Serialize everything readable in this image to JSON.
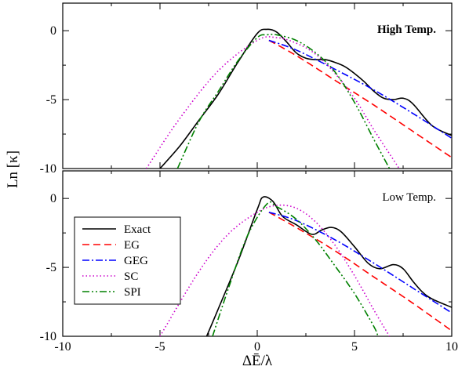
{
  "figure": {
    "ylabel": "Ln [κ]",
    "xlabel": "ΔĒ/λ"
  },
  "legend": {
    "placement": "center-left of bottom panel",
    "entries": [
      {
        "label": "Exact",
        "color": "#000000",
        "dash": "solid"
      },
      {
        "label": "EG",
        "color": "#ff0000",
        "dash": "dashed"
      },
      {
        "label": "GEG",
        "color": "#0000ff",
        "dash": "dash-dot"
      },
      {
        "label": "SC",
        "color": "#cc00cc",
        "dash": "dotted"
      },
      {
        "label": "SPI",
        "color": "#008000",
        "dash": "dash-dot-dot"
      }
    ]
  },
  "chart_data": [
    {
      "type": "line",
      "panel": "top",
      "title": "High Temp.",
      "xlim": [
        -10,
        10
      ],
      "ylim": [
        -10,
        2
      ],
      "xticks": [],
      "yticks": [
        0,
        -5,
        -10
      ],
      "ytick_labels": [
        "0",
        "-5",
        "-10"
      ],
      "grid": false,
      "series": [
        {
          "name": "Exact",
          "x": [
            -5,
            -4,
            -3,
            -2,
            -1,
            0,
            0.5,
            1,
            1.5,
            2,
            2.5,
            3,
            3.5,
            4,
            4.5,
            5,
            5.5,
            6,
            6.5,
            7,
            7.5,
            8,
            9,
            10
          ],
          "y": [
            -10,
            -8.4,
            -6.5,
            -4.6,
            -2.3,
            -0.2,
            0.1,
            -0.1,
            -0.8,
            -1.6,
            -2,
            -2.1,
            -2.1,
            -2.3,
            -2.6,
            -3.1,
            -3.7,
            -4.4,
            -4.9,
            -5,
            -4.9,
            -5.3,
            -6.9,
            -7.6
          ]
        },
        {
          "name": "EG",
          "x": [
            0.6,
            2,
            4,
            6,
            8,
            10
          ],
          "y": [
            -0.7,
            -1.8,
            -3.6,
            -5.4,
            -7.3,
            -9.2
          ]
        },
        {
          "name": "GEG",
          "x": [
            0.6,
            2,
            4,
            6,
            8,
            10
          ],
          "y": [
            -0.7,
            -1.4,
            -2.8,
            -4.3,
            -6.0,
            -7.8
          ]
        },
        {
          "name": "SC",
          "x": [
            -5.7,
            -4,
            -2,
            0,
            1,
            2,
            3,
            4,
            5,
            6,
            7.3
          ],
          "y": [
            -10,
            -6.4,
            -2.9,
            -0.7,
            -0.5,
            -0.9,
            -1.7,
            -3.1,
            -4.9,
            -7.2,
            -10
          ]
        },
        {
          "name": "SPI",
          "x": [
            -4.1,
            -3,
            -2,
            -1,
            0,
            0.5,
            1,
            2,
            3,
            4,
            5,
            6,
            6.8
          ],
          "y": [
            -10,
            -6.6,
            -4.4,
            -2.2,
            -0.5,
            -0.3,
            -0.3,
            -0.7,
            -1.6,
            -3.0,
            -5.2,
            -7.9,
            -10
          ]
        }
      ]
    },
    {
      "type": "line",
      "panel": "bottom",
      "title": "Low Temp.",
      "xlim": [
        -10,
        10
      ],
      "ylim": [
        -10,
        2
      ],
      "xticks": [
        -10,
        -5,
        0,
        5,
        10
      ],
      "xtick_labels": [
        "-10",
        "-5",
        "0",
        "5",
        "10"
      ],
      "yticks": [
        0,
        -5,
        -10
      ],
      "ytick_labels": [
        "0",
        "-5",
        "-10"
      ],
      "grid": false,
      "series": [
        {
          "name": "Exact",
          "x": [
            -2.6,
            -2,
            -1,
            0,
            0.3,
            0.8,
            1.3,
            2,
            2.8,
            3.3,
            3.8,
            4.3,
            5,
            5.7,
            6.3,
            7,
            7.5,
            8,
            8.5,
            9,
            10
          ],
          "y": [
            -10,
            -8,
            -4.6,
            -0.8,
            0.1,
            -0.2,
            -1.3,
            -1.9,
            -2.6,
            -2.3,
            -2.1,
            -2.4,
            -3.5,
            -4.7,
            -5.1,
            -4.8,
            -5.1,
            -6.0,
            -6.8,
            -7.3,
            -7.9
          ]
        },
        {
          "name": "EG",
          "x": [
            0.6,
            2,
            4,
            6,
            8,
            10
          ],
          "y": [
            -1.0,
            -2.1,
            -3.8,
            -5.7,
            -7.6,
            -9.6
          ]
        },
        {
          "name": "GEG",
          "x": [
            0.6,
            2,
            4,
            6,
            8,
            10
          ],
          "y": [
            -1.0,
            -1.6,
            -3.0,
            -4.7,
            -6.5,
            -8.3
          ]
        },
        {
          "name": "SC",
          "x": [
            -5,
            -3,
            -1.5,
            0,
            1,
            2,
            3,
            4,
            5,
            6,
            6.8
          ],
          "y": [
            -10,
            -5.3,
            -2.6,
            -1.0,
            -0.5,
            -0.7,
            -1.7,
            -3.4,
            -5.6,
            -8.1,
            -10
          ]
        },
        {
          "name": "SPI",
          "x": [
            -2.3,
            -1.5,
            -0.5,
            0.5,
            1,
            2,
            3,
            4,
            5,
            6,
            6.2
          ],
          "y": [
            -10,
            -6.6,
            -2.7,
            -0.4,
            -0.6,
            -1.5,
            -3.0,
            -4.9,
            -6.9,
            -9.3,
            -10
          ]
        }
      ]
    }
  ]
}
